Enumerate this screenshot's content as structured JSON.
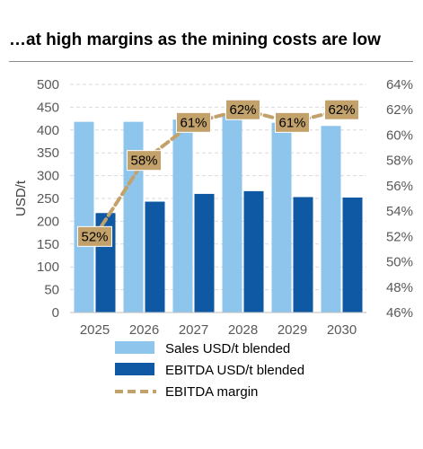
{
  "title": "…at high margins as the mining costs are low",
  "chart_data": {
    "type": "bar",
    "categories": [
      "2025",
      "2026",
      "2027",
      "2028",
      "2029",
      "2030"
    ],
    "series": [
      {
        "name": "Sales USD/t blended",
        "type": "bar",
        "axis": "left",
        "color": "#8ec5ec",
        "values": [
          418,
          418,
          423,
          430,
          416,
          409
        ]
      },
      {
        "name": "EBITDA USD/t blended",
        "type": "bar",
        "axis": "left",
        "color": "#0f58a4",
        "values": [
          218,
          243,
          260,
          266,
          253,
          252
        ]
      },
      {
        "name": "EBITDA margin",
        "type": "line",
        "axis": "right",
        "color": "#c2a26a",
        "style": "dashed",
        "values": [
          52,
          58,
          61,
          62,
          61,
          62
        ],
        "labels": [
          "52%",
          "58%",
          "61%",
          "62%",
          "61%",
          "62%"
        ]
      }
    ],
    "ylabel": "USD/t",
    "ylim": [
      0,
      500
    ],
    "yticks": [
      "0",
      "50",
      "100",
      "150",
      "200",
      "250",
      "300",
      "350",
      "400",
      "450",
      "500"
    ],
    "y2lim": [
      46,
      64
    ],
    "y2ticks": [
      "46%",
      "48%",
      "50%",
      "52%",
      "54%",
      "56%",
      "58%",
      "60%",
      "62%",
      "64%"
    ],
    "grid": true,
    "legend_position": "bottom",
    "label_box_color": "#c2a26a"
  }
}
